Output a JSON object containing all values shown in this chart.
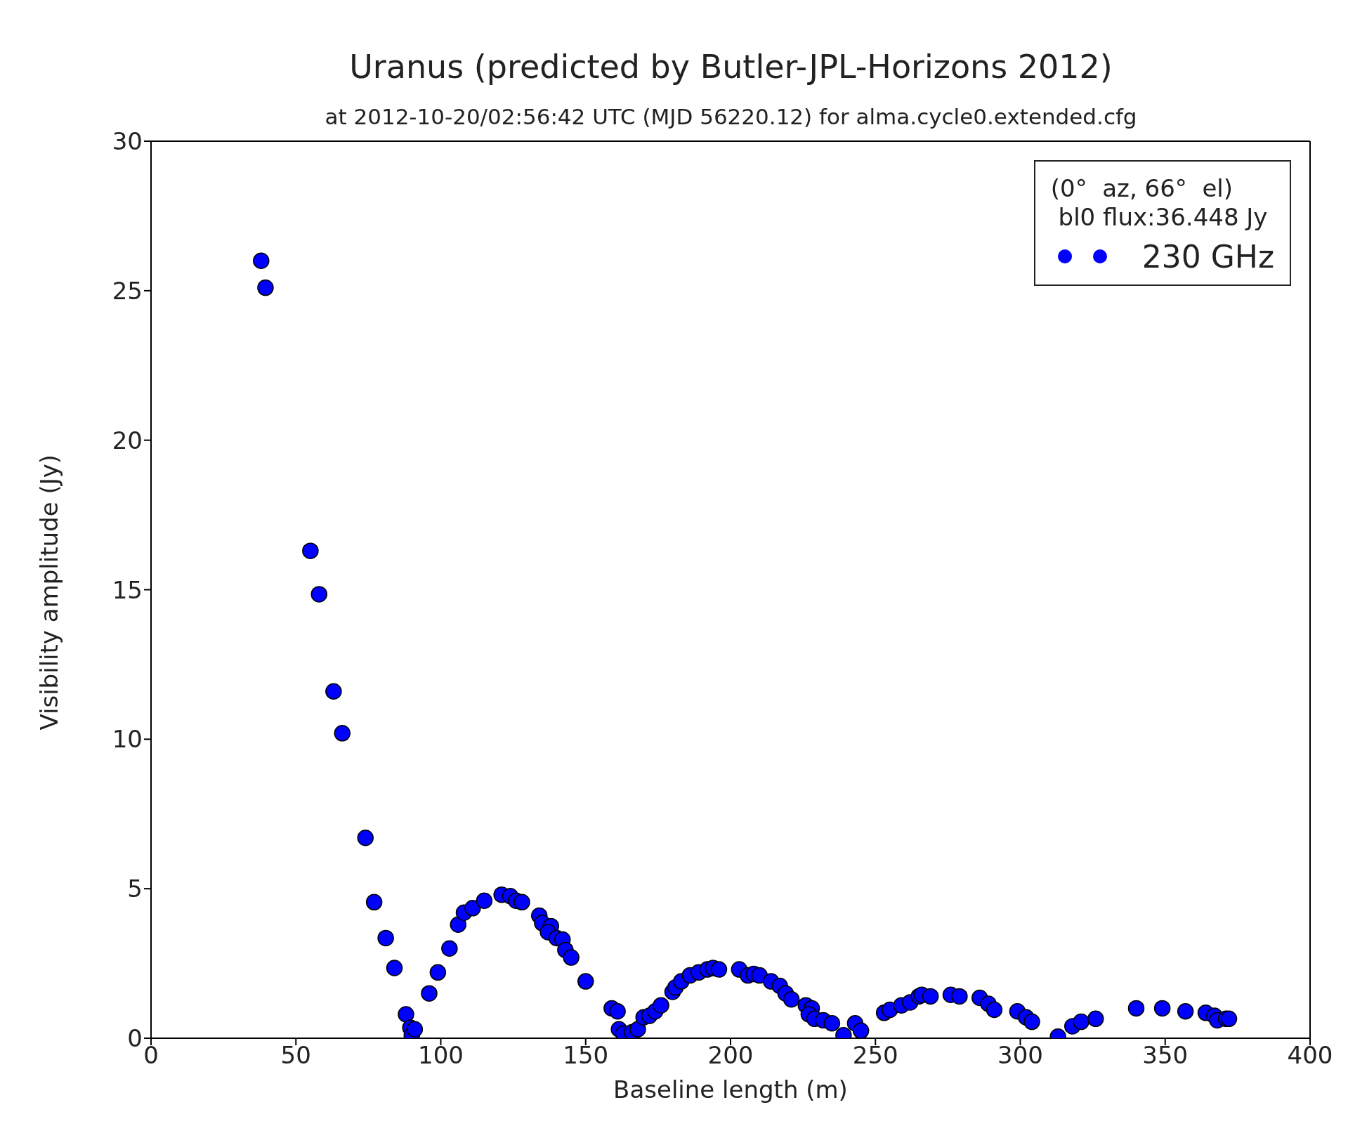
{
  "chart_data": {
    "type": "scatter",
    "title": "Uranus (predicted by Butler-JPL-Horizons 2012)",
    "subtitle": "at 2012-10-20/02:56:42 UTC (MJD 56220.12) for alma.cycle0.extended.cfg",
    "xlabel": "Baseline length (m)",
    "ylabel": "Visibility amplitude (Jy)",
    "legend_title": "(0°  az, 66°  el)\n bl0 flux:36.448 Jy",
    "legend": "top right",
    "marker": "circle",
    "xlim": [
      0,
      400
    ],
    "xticks": [
      0,
      50,
      100,
      150,
      200,
      250,
      300,
      350,
      400
    ],
    "ylim": [
      0,
      30
    ],
    "yticks": [
      0,
      5,
      10,
      15,
      20,
      25,
      30
    ],
    "series": [
      {
        "name": "230 GHz",
        "color": "#0000ff",
        "x": [
          38,
          39.5,
          55,
          58,
          63,
          66,
          74,
          77,
          81,
          84,
          88,
          89.5,
          90,
          91,
          96,
          99,
          103,
          106,
          108,
          111,
          115,
          121,
          124,
          126,
          128,
          134,
          135,
          138,
          137,
          140,
          142,
          143,
          145,
          150,
          159,
          161,
          161.5,
          163,
          166,
          168,
          170,
          172,
          174,
          176,
          180,
          181,
          183,
          186,
          189,
          192,
          194,
          196,
          203,
          206,
          208,
          210,
          214,
          217,
          219,
          221,
          226,
          228,
          227,
          229,
          232,
          235,
          239,
          243,
          245,
          253,
          255,
          259,
          262,
          265,
          266,
          269,
          276,
          279,
          286,
          289,
          291,
          299,
          302,
          304,
          313,
          318,
          321,
          326,
          340,
          349,
          357,
          364,
          367,
          368,
          371,
          372
        ],
        "values": [
          26,
          25.1,
          16.3,
          14.85,
          11.6,
          10.2,
          6.7,
          4.55,
          3.35,
          2.35,
          0.8,
          0.35,
          0.1,
          0.3,
          1.5,
          2.2,
          3.0,
          3.8,
          4.2,
          4.35,
          4.6,
          4.8,
          4.75,
          4.6,
          4.55,
          4.1,
          3.85,
          3.75,
          3.55,
          3.35,
          3.3,
          2.95,
          2.7,
          1.9,
          1.0,
          0.9,
          0.3,
          0.15,
          0.2,
          0.3,
          0.7,
          0.75,
          0.9,
          1.1,
          1.55,
          1.7,
          1.9,
          2.1,
          2.2,
          2.3,
          2.35,
          2.3,
          2.3,
          2.1,
          2.15,
          2.1,
          1.9,
          1.75,
          1.5,
          1.3,
          1.1,
          1.0,
          0.8,
          0.65,
          0.6,
          0.5,
          0.1,
          0.5,
          0.25,
          0.85,
          0.95,
          1.1,
          1.2,
          1.4,
          1.45,
          1.4,
          1.45,
          1.4,
          1.35,
          1.15,
          0.95,
          0.9,
          0.7,
          0.55,
          0.05,
          0.4,
          0.55,
          0.65,
          1.0,
          1.0,
          0.9,
          0.85,
          0.75,
          0.6,
          0.65,
          0.65
        ]
      }
    ]
  }
}
